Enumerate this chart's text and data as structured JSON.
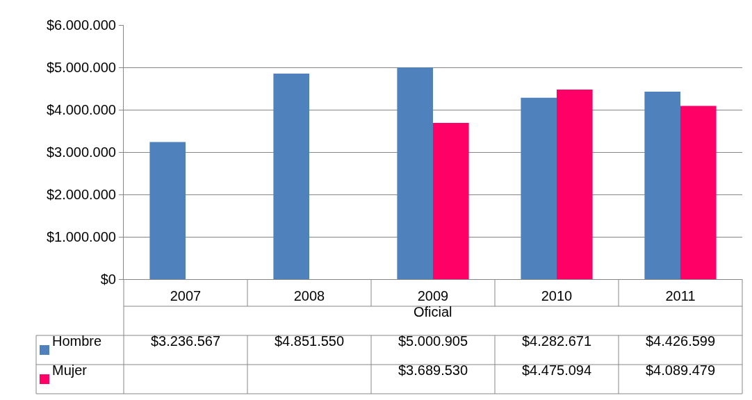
{
  "chart_data": {
    "type": "bar",
    "categories": [
      "2007",
      "2008",
      "2009",
      "2010",
      "2011"
    ],
    "xlabel": "Oficial",
    "series": [
      {
        "name": "Hombre",
        "color": "#4f81bd",
        "values": [
          3236567,
          4851550,
          5000905,
          4282671,
          4426599
        ],
        "value_labels": [
          "$3.236.567",
          "$4.851.550",
          "$5.000.905",
          "$4.282.671",
          "$4.426.599"
        ]
      },
      {
        "name": "Mujer",
        "color": "#ff0066",
        "values": [
          null,
          null,
          3689530,
          4475094,
          4089479
        ],
        "value_labels": [
          null,
          null,
          "$3.689.530",
          "$4.475.094",
          "$4.089.479"
        ]
      }
    ],
    "ylim": [
      0,
      6000000
    ],
    "yticks": [
      {
        "value": 0,
        "label": "$0"
      },
      {
        "value": 1000000,
        "label": "$1.000.000"
      },
      {
        "value": 2000000,
        "label": "$2.000.000"
      },
      {
        "value": 3000000,
        "label": "$3.000.000"
      },
      {
        "value": 4000000,
        "label": "$4.000.000"
      },
      {
        "value": 5000000,
        "label": "$5.000.000"
      },
      {
        "value": 6000000,
        "label": "$6.000.000"
      }
    ],
    "grid": "y",
    "legend": "bottom"
  }
}
